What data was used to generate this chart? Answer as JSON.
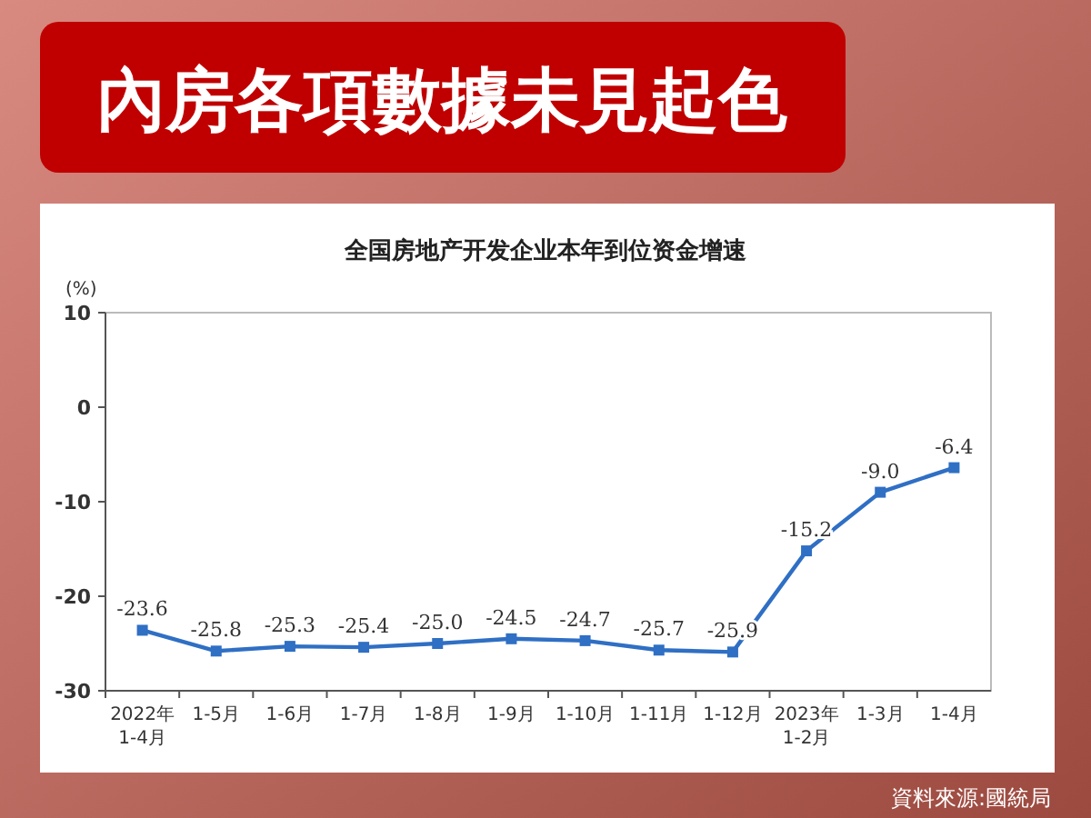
{
  "chart_data": {
    "type": "line",
    "title": "內房各項數據未見起色",
    "subtitle": "全国房地产开发企业本年到位资金增速",
    "ylabel": "(%)",
    "categories": [
      "2022年\n1-4月",
      "1-5月",
      "1-6月",
      "1-7月",
      "1-8月",
      "1-9月",
      "1-10月",
      "1-11月",
      "1-12月",
      "2023年\n1-2月",
      "1-3月",
      "1-4月"
    ],
    "series": [
      {
        "color": "#2f6fc4",
        "values": [
          -23.6,
          -25.8,
          -25.3,
          -25.4,
          -25.0,
          -24.5,
          -24.7,
          -25.7,
          -25.9,
          -15.2,
          -9.0,
          -6.4
        ],
        "value_labels": [
          "-23.6",
          "-25.8",
          "-25.3",
          "-25.4",
          "-25.0",
          "-24.5",
          "-24.7",
          "-25.7",
          "-25.9",
          "-15.2",
          "-9.0",
          "-6.4"
        ]
      }
    ],
    "ylim": [
      -30,
      10
    ],
    "yticks": [
      -30,
      -20,
      -10,
      0,
      10
    ],
    "marker": "square",
    "line_style": "solid",
    "annotations": [
      "資料來源:國統局"
    ]
  }
}
